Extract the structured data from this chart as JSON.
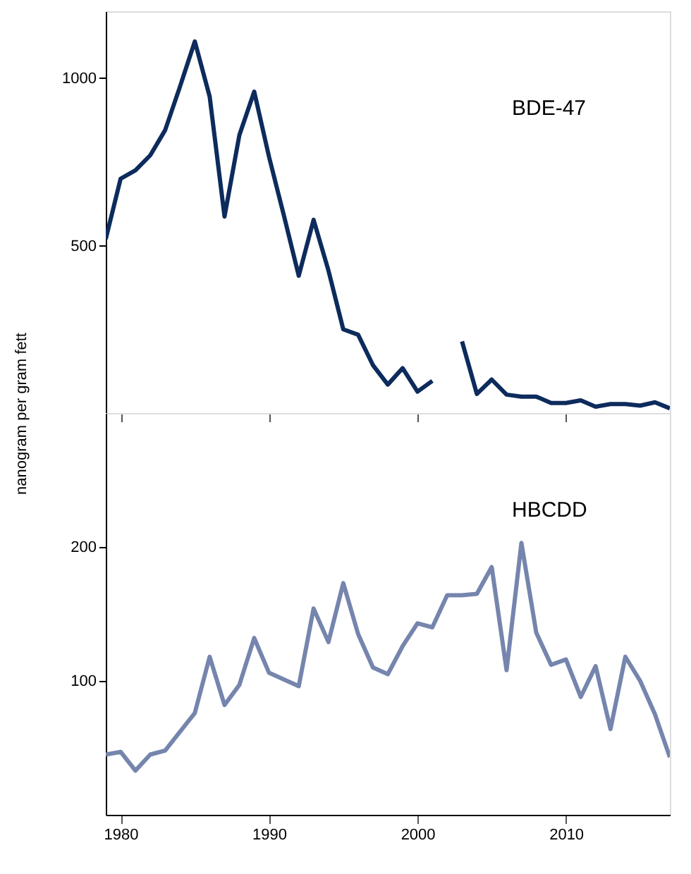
{
  "chart_data": [
    {
      "type": "line",
      "x": [
        1979,
        1980,
        1981,
        1982,
        1983,
        1984,
        1985,
        1986,
        1987,
        1988,
        1989,
        1990,
        1991,
        1992,
        1993,
        1994,
        1995,
        1996,
        1997,
        1998,
        1999,
        2000,
        2001,
        2002,
        2003,
        2004,
        2005,
        2006,
        2007,
        2008,
        2009,
        2010,
        2011,
        2012,
        2013,
        2014,
        2015,
        2016,
        2017
      ],
      "series": [
        {
          "name": "BDE-47",
          "color": "#0d2b5c",
          "values": [
            520,
            700,
            725,
            770,
            845,
            975,
            1110,
            945,
            587,
            830,
            960,
            765,
            590,
            410,
            577,
            426,
            250,
            234,
            143,
            85,
            134,
            64,
            96,
            null,
            214,
            57,
            100,
            55,
            49,
            49,
            30,
            30,
            38,
            19,
            27,
            27,
            22,
            32,
            14
          ]
        }
      ],
      "xlim": [
        1979,
        2017
      ],
      "xticks": [
        1980,
        1990,
        2000,
        2010
      ],
      "ylim": [
        0,
        1200
      ],
      "yticks": [
        500,
        1000
      ],
      "tick_labels": "y",
      "grid": false,
      "legend": false
    },
    {
      "type": "line",
      "x": [
        1979,
        1980,
        1981,
        1982,
        1983,
        1984,
        1985,
        1986,
        1987,
        1988,
        1989,
        1990,
        1991,
        1992,
        1993,
        1994,
        1995,
        1996,
        1997,
        1998,
        1999,
        2000,
        2001,
        2002,
        2003,
        2004,
        2005,
        2006,
        2007,
        2008,
        2009,
        2010,
        2011,
        2012,
        2013,
        2014,
        2015,
        2016,
        2017
      ],
      "series": [
        {
          "name": "HBCDD",
          "color": "#7585ad",
          "values": [
            45,
            47,
            33,
            45,
            48,
            62,
            76,
            118,
            82,
            97,
            132,
            106,
            101,
            96,
            154,
            129,
            173,
            135,
            110,
            105,
            126,
            143,
            140,
            164,
            164,
            165,
            185,
            108,
            203,
            136,
            112,
            116,
            88,
            111,
            64,
            118,
            100,
            75,
            43
          ]
        }
      ],
      "ylabel": "nanogram per gram fett",
      "xlim": [
        1979,
        2017
      ],
      "xticks": [
        1980,
        1990,
        2000,
        2010
      ],
      "ylim": [
        0,
        300
      ],
      "yticks": [
        100,
        200
      ],
      "grid": false,
      "legend": false
    }
  ]
}
